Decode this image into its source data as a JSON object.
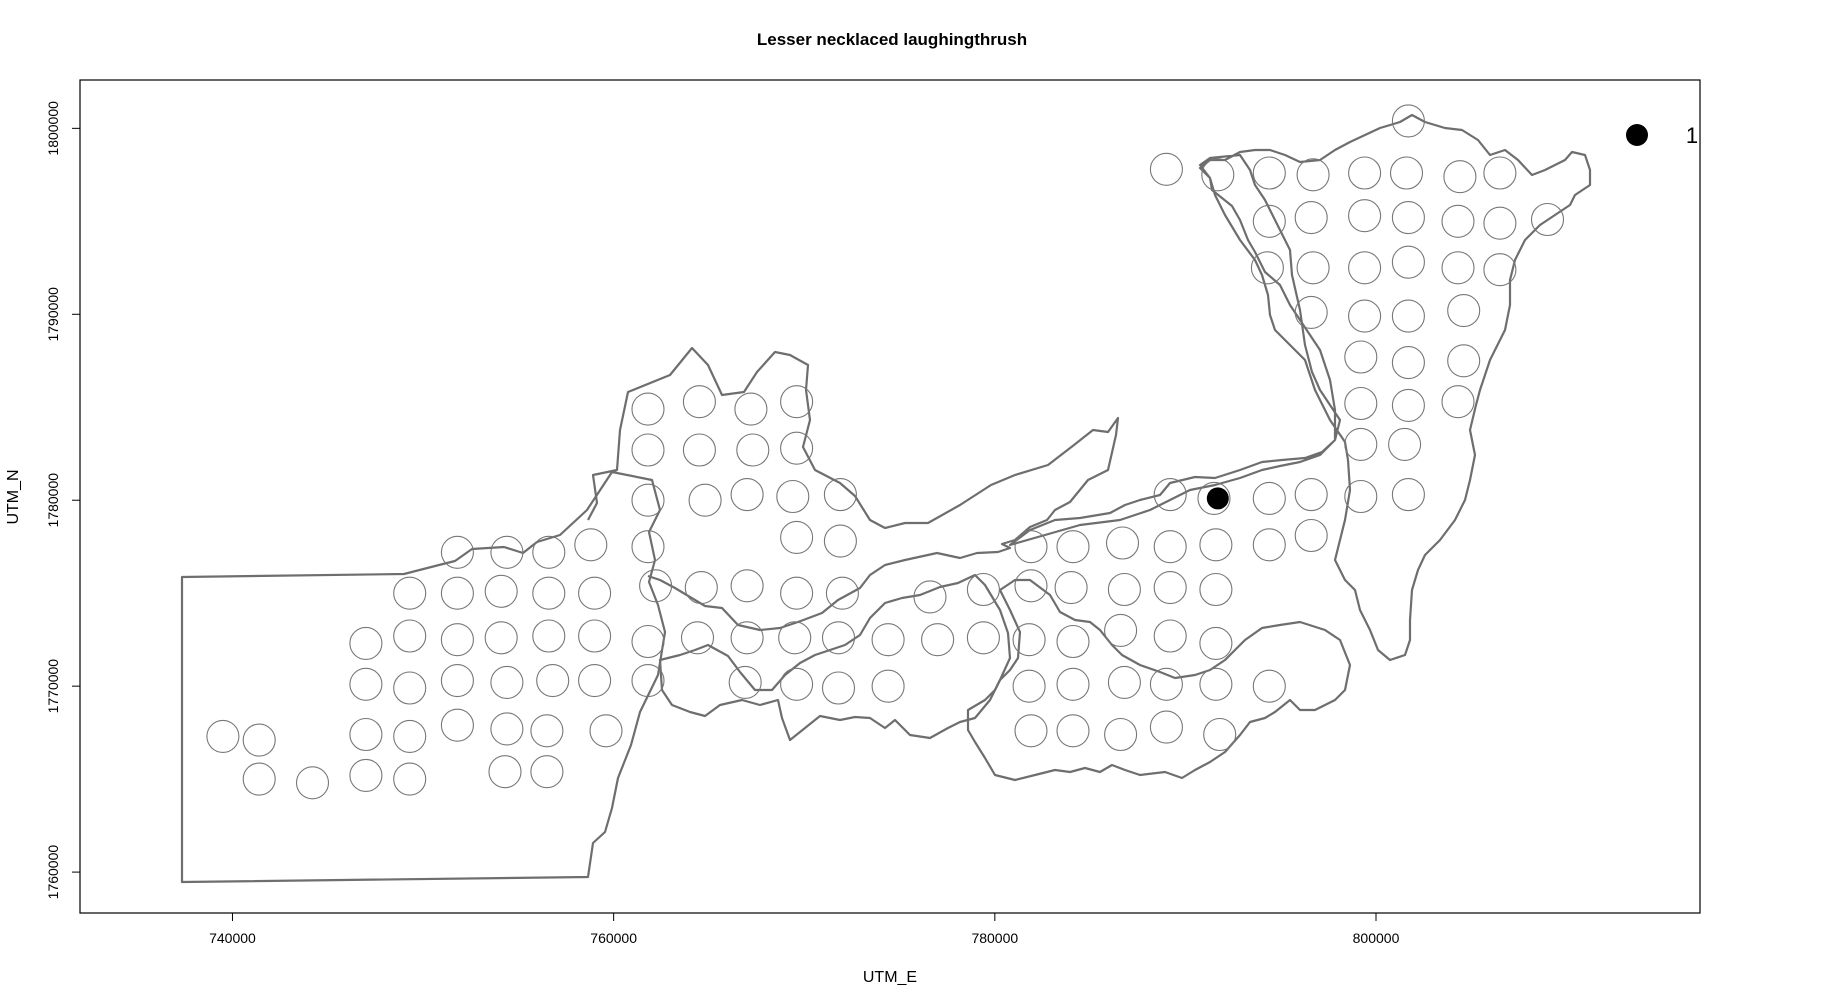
{
  "chart_data": {
    "type": "scatter",
    "title": "Lesser necklaced laughingthrush",
    "xlabel": "UTM_E",
    "ylabel": "UTM_N",
    "xlim": [
      732000,
      817000
    ],
    "ylim": [
      1757800,
      1802600
    ],
    "x_ticks": [
      740000,
      760000,
      780000,
      800000
    ],
    "x_tick_labels": [
      "740000",
      "760000",
      "780000",
      "800000"
    ],
    "y_ticks": [
      1760000,
      1770000,
      1780000,
      1790000,
      1800000
    ],
    "y_tick_labels": [
      "1760000",
      "1770000",
      "1780000",
      "1790000",
      "1800000"
    ],
    "grid": false,
    "legend": {
      "position": "top-right",
      "entries": [
        {
          "label": "1",
          "count": 1
        }
      ]
    },
    "colors": {
      "survey_points": "#777777",
      "boundary": "#6e6e6e",
      "detections": "#000000",
      "axes": "#000000"
    },
    "series": [
      {
        "marker": "open-circle",
        "points": [
          [
            739500,
            1767300
          ],
          [
            741400,
            1767100
          ],
          [
            741400,
            1765000
          ],
          [
            744200,
            1764800
          ],
          [
            747000,
            1772300
          ],
          [
            747000,
            1770100
          ],
          [
            747000,
            1767400
          ],
          [
            747000,
            1765200
          ],
          [
            749300,
            1775000
          ],
          [
            749300,
            1772700
          ],
          [
            749300,
            1769900
          ],
          [
            749300,
            1767300
          ],
          [
            749300,
            1765000
          ],
          [
            751800,
            1777200
          ],
          [
            751800,
            1775000
          ],
          [
            751800,
            1772500
          ],
          [
            751800,
            1770300
          ],
          [
            751800,
            1767900
          ],
          [
            754100,
            1775100
          ],
          [
            754100,
            1772600
          ],
          [
            754400,
            1770200
          ],
          [
            754400,
            1767700
          ],
          [
            754300,
            1765400
          ],
          [
            754400,
            1777200
          ],
          [
            756600,
            1777200
          ],
          [
            756600,
            1775000
          ],
          [
            756600,
            1772700
          ],
          [
            756800,
            1770300
          ],
          [
            756500,
            1767600
          ],
          [
            756500,
            1765400
          ],
          [
            758800,
            1777600
          ],
          [
            759000,
            1775000
          ],
          [
            759000,
            1772700
          ],
          [
            759000,
            1770300
          ],
          [
            759600,
            1767600
          ],
          [
            761800,
            1784900
          ],
          [
            761800,
            1782700
          ],
          [
            761800,
            1780000
          ],
          [
            761800,
            1777500
          ],
          [
            762200,
            1775400
          ],
          [
            761800,
            1772400
          ],
          [
            761800,
            1770300
          ],
          [
            764500,
            1785300
          ],
          [
            764500,
            1782700
          ],
          [
            764800,
            1780000
          ],
          [
            764600,
            1775300
          ],
          [
            764400,
            1772600
          ],
          [
            767200,
            1784900
          ],
          [
            767300,
            1782700
          ],
          [
            767000,
            1780300
          ],
          [
            767000,
            1775400
          ],
          [
            767000,
            1772600
          ],
          [
            766900,
            1770200
          ],
          [
            769600,
            1785300
          ],
          [
            769600,
            1782800
          ],
          [
            769400,
            1780200
          ],
          [
            769600,
            1778000
          ],
          [
            769600,
            1775000
          ],
          [
            769500,
            1772600
          ],
          [
            769600,
            1770100
          ],
          [
            771900,
            1780300
          ],
          [
            771900,
            1777800
          ],
          [
            772000,
            1775000
          ],
          [
            771800,
            1772600
          ],
          [
            771800,
            1769900
          ],
          [
            774400,
            1772500
          ],
          [
            774400,
            1770000
          ],
          [
            776600,
            1774800
          ],
          [
            777000,
            1772500
          ],
          [
            779400,
            1775200
          ],
          [
            779400,
            1772600
          ],
          [
            781900,
            1777500
          ],
          [
            781900,
            1775400
          ],
          [
            781800,
            1772500
          ],
          [
            781800,
            1770000
          ],
          [
            781900,
            1767600
          ],
          [
            784100,
            1777500
          ],
          [
            784000,
            1775300
          ],
          [
            784100,
            1772400
          ],
          [
            784100,
            1770100
          ],
          [
            784100,
            1767600
          ],
          [
            786700,
            1777700
          ],
          [
            786800,
            1775200
          ],
          [
            786600,
            1773000
          ],
          [
            786800,
            1770200
          ],
          [
            786600,
            1767400
          ],
          [
            789200,
            1780300
          ],
          [
            789200,
            1777500
          ],
          [
            789200,
            1775300
          ],
          [
            789200,
            1772700
          ],
          [
            789000,
            1770100
          ],
          [
            789000,
            1767800
          ],
          [
            791500,
            1780100
          ],
          [
            791600,
            1777600
          ],
          [
            791600,
            1775200
          ],
          [
            791600,
            1772300
          ],
          [
            791600,
            1770100
          ],
          [
            791800,
            1767400
          ],
          [
            794400,
            1780100
          ],
          [
            794400,
            1777600
          ],
          [
            794400,
            1770000
          ],
          [
            796600,
            1780300
          ],
          [
            796600,
            1778100
          ],
          [
            789000,
            1797800
          ],
          [
            791700,
            1797500
          ],
          [
            794400,
            1797600
          ],
          [
            796700,
            1797500
          ],
          [
            799400,
            1797600
          ],
          [
            801600,
            1797600
          ],
          [
            804400,
            1797400
          ],
          [
            806500,
            1797600
          ],
          [
            794400,
            1795000
          ],
          [
            796600,
            1795200
          ],
          [
            799400,
            1795300
          ],
          [
            801700,
            1795200
          ],
          [
            804300,
            1795000
          ],
          [
            806500,
            1794900
          ],
          [
            809000,
            1795100
          ],
          [
            794300,
            1792500
          ],
          [
            796700,
            1792500
          ],
          [
            799400,
            1792500
          ],
          [
            801700,
            1792800
          ],
          [
            804300,
            1792500
          ],
          [
            806500,
            1792400
          ],
          [
            796600,
            1790100
          ],
          [
            799400,
            1789900
          ],
          [
            801700,
            1789900
          ],
          [
            804600,
            1790200
          ],
          [
            799200,
            1787700
          ],
          [
            801700,
            1787400
          ],
          [
            804600,
            1787500
          ],
          [
            799200,
            1785200
          ],
          [
            801700,
            1785100
          ],
          [
            804300,
            1785300
          ],
          [
            799200,
            1783000
          ],
          [
            801500,
            1783000
          ],
          [
            799200,
            1780200
          ],
          [
            801700,
            1780300
          ],
          [
            801700,
            1800400
          ]
        ]
      },
      {
        "name": "1",
        "marker": "filled-circle",
        "points": [
          [
            791700,
            1780100
          ]
        ]
      }
    ]
  }
}
